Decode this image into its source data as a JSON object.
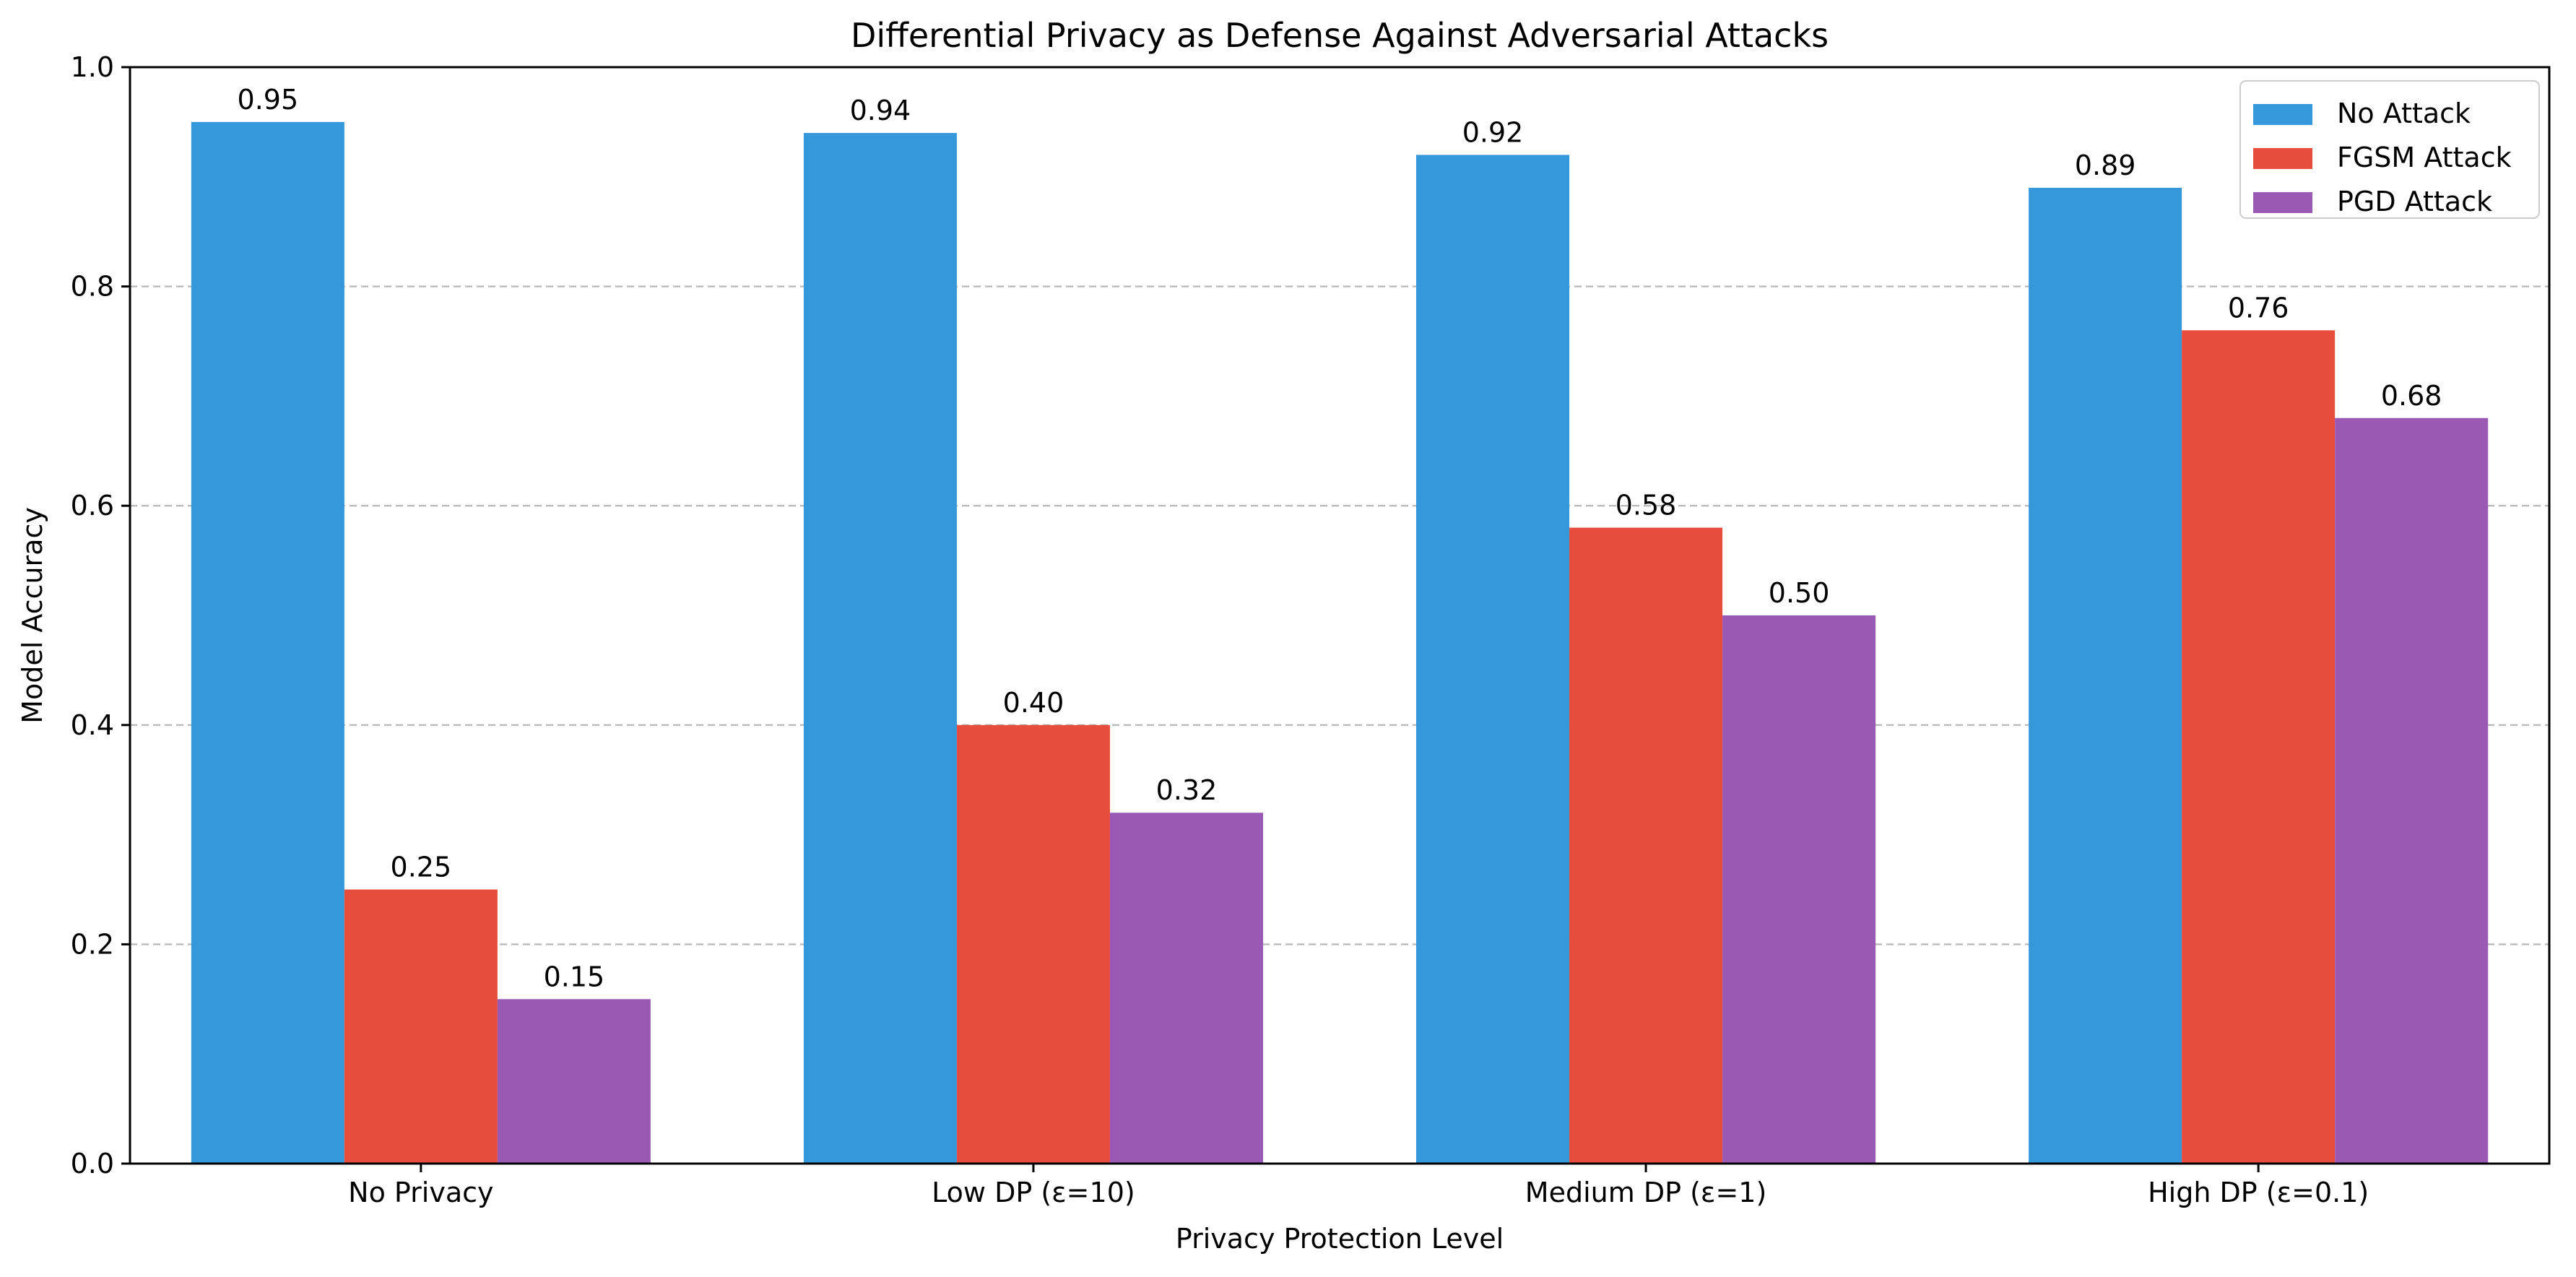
{
  "chart_data": {
    "type": "bar",
    "title": "Differential Privacy as Defense Against Adversarial Attacks",
    "xlabel": "Privacy Protection Level",
    "ylabel": "Model Accuracy",
    "ylim": [
      0,
      1.0
    ],
    "yticks": [
      "0.0",
      "0.2",
      "0.4",
      "0.6",
      "0.8",
      "1.0"
    ],
    "categories": [
      "No Privacy",
      "Low DP (ε=10)",
      "Medium DP (ε=1)",
      "High DP (ε=0.1)"
    ],
    "series": [
      {
        "name": "No Attack",
        "color": "#3498db",
        "values": [
          0.95,
          0.94,
          0.92,
          0.89
        ],
        "labels": [
          "0.95",
          "0.94",
          "0.92",
          "0.89"
        ]
      },
      {
        "name": "FGSM Attack",
        "color": "#e74c3c",
        "values": [
          0.25,
          0.4,
          0.58,
          0.76
        ],
        "labels": [
          "0.25",
          "0.40",
          "0.58",
          "0.76"
        ]
      },
      {
        "name": "PGD Attack",
        "color": "#9b59b6",
        "values": [
          0.15,
          0.32,
          0.5,
          0.68
        ],
        "labels": [
          "0.15",
          "0.32",
          "0.50",
          "0.68"
        ]
      }
    ],
    "grid": "y-dashed",
    "legend_position": "top-right"
  }
}
